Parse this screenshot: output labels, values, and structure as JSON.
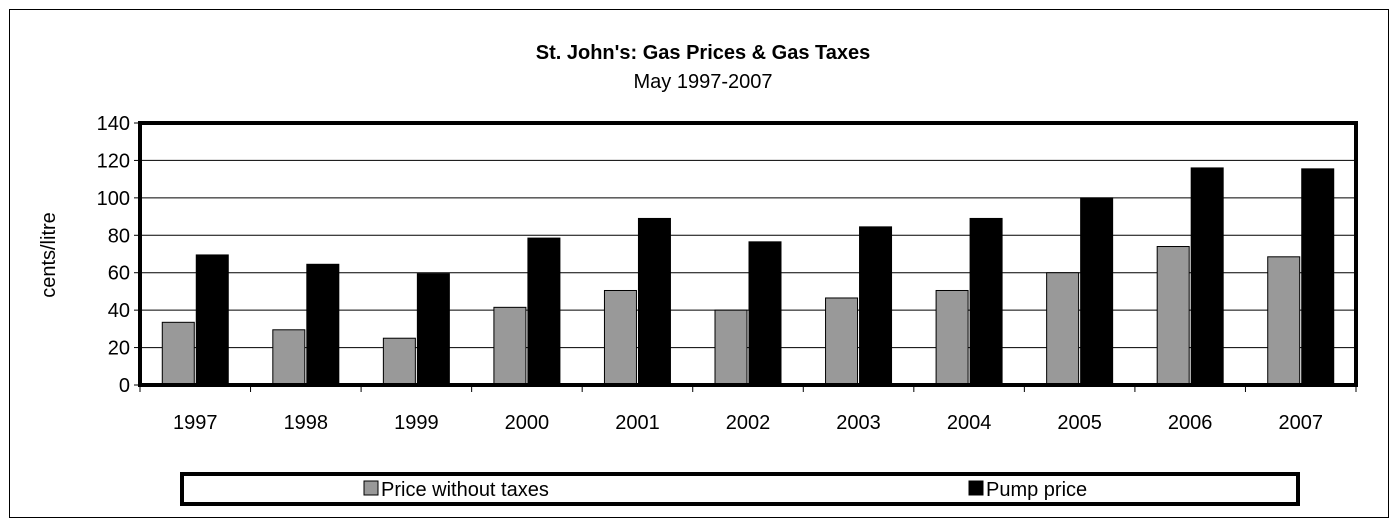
{
  "chart_data": {
    "type": "bar",
    "title": "St. John's: Gas Prices & Gas Taxes",
    "subtitle": "May 1997-2007",
    "xlabel": "",
    "ylabel": "cents/litre",
    "ylim": [
      0,
      140
    ],
    "ytick_step": 20,
    "grid": true,
    "legend_position": "bottom",
    "categories": [
      "1997",
      "1998",
      "1999",
      "2000",
      "2001",
      "2002",
      "2003",
      "2004",
      "2005",
      "2006",
      "2007"
    ],
    "series": [
      {
        "name": "Price without taxes",
        "color": "#999999",
        "values": [
          33.5,
          29.5,
          25,
          41.5,
          50.5,
          40,
          46.5,
          50.5,
          60,
          74,
          68.5
        ]
      },
      {
        "name": "Pump price",
        "color": "#000000",
        "values": [
          69.5,
          64.5,
          59.5,
          78.5,
          89,
          76.5,
          84.5,
          89,
          100,
          116,
          115.5
        ]
      }
    ]
  }
}
